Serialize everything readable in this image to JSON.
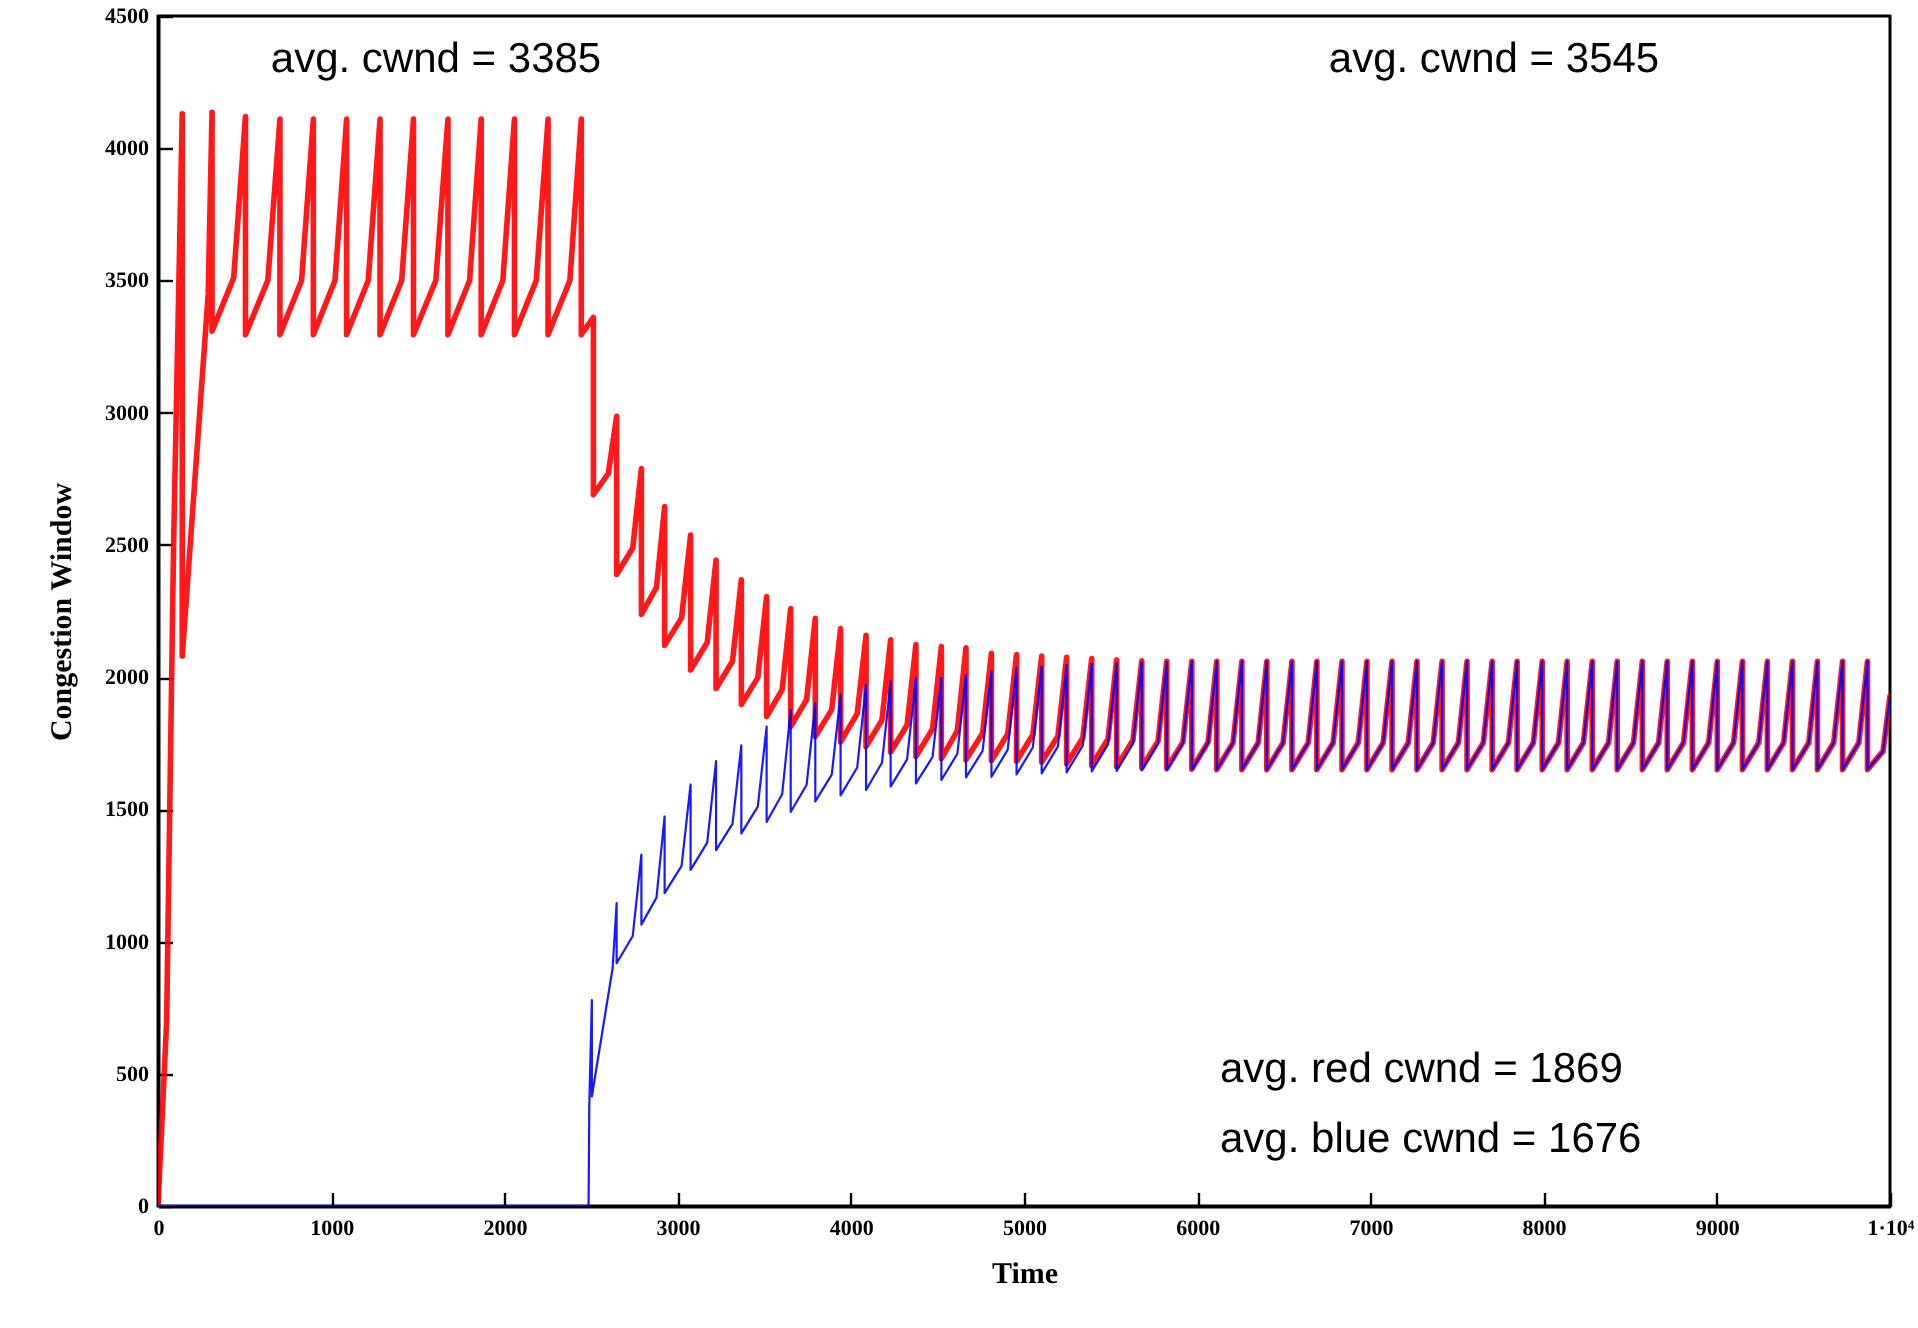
{
  "chart_data": {
    "type": "line",
    "xlabel": "Time",
    "ylabel": "Congestion Window",
    "xlim": [
      0,
      10000
    ],
    "ylim": [
      0,
      4500
    ],
    "xticks": [
      0,
      1000,
      2000,
      3000,
      4000,
      5000,
      6000,
      7000,
      8000,
      9000,
      {
        "value": 10000,
        "label": "1·10⁴"
      }
    ],
    "yticks": [
      0,
      500,
      1000,
      1500,
      2000,
      2500,
      3000,
      3500,
      4000,
      4500
    ],
    "line_style": "solid",
    "annotations": [
      "avg. cwnd = 3385",
      "avg. cwnd = 3545",
      "avg. red  cwnd =  1869",
      "avg. blue cwnd = 1676"
    ],
    "series": [
      {
        "color": "#ff0000",
        "x": [
          0,
          50,
          90,
          140,
          140,
          290,
          312,
          312,
          437,
          505,
          505,
          634,
          704,
          704,
          829,
          897,
          897,
          1022,
          1089,
          1089,
          1214,
          1282,
          1282,
          1407,
          1475,
          1475,
          1604,
          1674,
          1674,
          1799,
          1866,
          1866,
          1991,
          2058,
          2058,
          2184,
          2252,
          2252,
          2378,
          2444,
          2444,
          2514,
          2514,
          2600,
          2648,
          2648,
          2741,
          2791,
          2791,
          2878,
          2925,
          2925,
          3023,
          3075,
          3075,
          3171,
          3222,
          3222,
          3317,
          3368,
          3368,
          3463,
          3514,
          3514,
          3604,
          3653,
          3653,
          3745,
          3795,
          3795,
          3890,
          3941,
          3941,
          4037,
          4088,
          4088,
          4180,
          4230,
          4230,
          4325,
          4376,
          4376,
          4472,
          4523,
          4523,
          4615,
          4665,
          4665,
          4761,
          4812,
          4812,
          4906,
          4957,
          4957,
          5051,
          5102,
          5102,
          5196,
          5246,
          5246,
          5340,
          5391,
          5391,
          5485,
          5535,
          5535,
          5629,
          5680,
          5680,
          5774,
          5824,
          5824,
          5918,
          5969,
          5969,
          6063,
          6113,
          6113,
          6207,
          6258,
          6258,
          6352,
          6402,
          6402,
          6496,
          6547,
          6547,
          6641,
          6691,
          6691,
          6785,
          6836,
          6836,
          6930,
          6980,
          6980,
          7074,
          7125,
          7125,
          7219,
          7269,
          7269,
          7363,
          7414,
          7414,
          7508,
          7558,
          7558,
          7652,
          7703,
          7703,
          7797,
          7847,
          7847,
          7941,
          7992,
          7992,
          8086,
          8136,
          8136,
          8230,
          8281,
          8281,
          8375,
          8425,
          8425,
          8519,
          8570,
          8570,
          8664,
          8714,
          8714,
          8808,
          8859,
          8859,
          8953,
          9003,
          9003,
          9097,
          9148,
          9148,
          9242,
          9292,
          9292,
          9386,
          9437,
          9437,
          9531,
          9581,
          9581,
          9675,
          9726,
          9726,
          9820,
          9870,
          9870,
          9960,
          10000
        ],
        "values": [
          0,
          700,
          2500,
          4130,
          2080,
          3450,
          4136,
          3308,
          3510,
          4120,
          3295,
          3500,
          4110,
          3295,
          3500,
          4110,
          3295,
          3500,
          4110,
          3295,
          3500,
          4110,
          3295,
          3500,
          4110,
          3295,
          3500,
          4110,
          3295,
          3500,
          4110,
          3295,
          3500,
          4110,
          3295,
          3500,
          4110,
          3295,
          3500,
          4110,
          3295,
          3360,
          2690,
          2770,
          2986,
          2388,
          2488,
          2789,
          2237,
          2339,
          2645,
          2120,
          2224,
          2537,
          2027,
          2131,
          2443,
          1957,
          2060,
          2368,
          1896,
          1998,
          2305,
          1851,
          1953,
          2259,
          1813,
          1915,
          2222,
          1775,
          1877,
          2184,
          1755,
          1862,
          2158,
          1737,
          1838,
          2141,
          1717,
          1819,
          2123,
          1700,
          1804,
          2116,
          1692,
          1797,
          2111,
          1687,
          1788,
          2090,
          1685,
          1785,
          2085,
          1682,
          1782,
          2080,
          1678,
          1777,
          2075,
          1672,
          1771,
          2070,
          1666,
          1766,
          2065,
          1661,
          1761,
          2062,
          1657,
          1758,
          2060,
          1654,
          1755,
          2060,
          1652,
          1754,
          2060,
          1650,
          1752,
          2060,
          1650,
          1752,
          2060,
          1650,
          1752,
          2060,
          1650,
          1752,
          2060,
          1650,
          1752,
          2060,
          1650,
          1752,
          2060,
          1650,
          1752,
          2060,
          1650,
          1752,
          2060,
          1650,
          1752,
          2060,
          1650,
          1752,
          2060,
          1650,
          1752,
          2060,
          1650,
          1752,
          2060,
          1650,
          1752,
          2060,
          1650,
          1752,
          2060,
          1650,
          1752,
          2060,
          1650,
          1752,
          2060,
          1650,
          1752,
          2060,
          1650,
          1752,
          2060,
          1650,
          1752,
          2060,
          1650,
          1752,
          2060,
          1650,
          1752,
          2060,
          1650,
          1752,
          2060,
          1650,
          1752,
          2060,
          1650,
          1752,
          2060,
          1650,
          1752,
          2060,
          1650,
          1752,
          2060,
          1650,
          1720,
          1929
        ]
      },
      {
        "color": "#0000ff",
        "x": [
          0,
          2486,
          2490,
          2505,
          2505,
          2625,
          2648,
          2648,
          2741,
          2791,
          2791,
          2878,
          2925,
          2925,
          3023,
          3075,
          3075,
          3171,
          3222,
          3222,
          3317,
          3368,
          3368,
          3463,
          3514,
          3514,
          3604,
          3653,
          3653,
          3745,
          3795,
          3795,
          3890,
          3941,
          3941,
          4037,
          4088,
          4088,
          4180,
          4230,
          4230,
          4325,
          4376,
          4376,
          4472,
          4523,
          4523,
          4615,
          4665,
          4665,
          4761,
          4812,
          4812,
          4906,
          4957,
          4957,
          5051,
          5102,
          5102,
          5196,
          5246,
          5246,
          5340,
          5391,
          5391,
          5485,
          5535,
          5535,
          5629,
          5680,
          5680,
          5774,
          5824,
          5824,
          5918,
          5969,
          5969,
          6063,
          6113,
          6113,
          6207,
          6258,
          6258,
          6352,
          6402,
          6402,
          6496,
          6547,
          6547,
          6641,
          6691,
          6691,
          6785,
          6836,
          6836,
          6930,
          6980,
          6980,
          7074,
          7125,
          7125,
          7219,
          7269,
          7269,
          7363,
          7414,
          7414,
          7508,
          7558,
          7558,
          7652,
          7703,
          7703,
          7797,
          7847,
          7847,
          7941,
          7992,
          7992,
          8086,
          8136,
          8136,
          8230,
          8281,
          8281,
          8375,
          8425,
          8425,
          8519,
          8570,
          8570,
          8664,
          8714,
          8714,
          8808,
          8859,
          8859,
          8953,
          9003,
          9003,
          9097,
          9148,
          9148,
          9242,
          9292,
          9292,
          9386,
          9437,
          9437,
          9531,
          9581,
          9581,
          9675,
          9726,
          9726,
          9820,
          9870,
          9870,
          9960,
          10000
        ],
        "values": [
          0,
          0,
          376,
          779,
          414,
          900,
          1145,
          918,
          1021,
          1329,
          1064,
          1166,
          1473,
          1183,
          1286,
          1594,
          1271,
          1374,
          1682,
          1346,
          1445,
          1742,
          1409,
          1510,
          1813,
          1452,
          1558,
          1876,
          1490,
          1593,
          1901,
          1530,
          1631,
          1934,
          1553,
          1658,
          1972,
          1573,
          1676,
          1984,
          1586,
          1689,
          1997,
          1598,
          1698,
          1997,
          1611,
          1710,
          2007,
          1621,
          1721,
          2022,
          1623,
          1726,
          2035,
          1632,
          1734,
          2040,
          1636,
          1738,
          2045,
          1640,
          1742,
          2050,
          1643,
          1745,
          2053,
          1645,
          1748,
          2056,
          1647,
          1750,
          2058,
          1648,
          1751,
          2060,
          1649,
          1752,
          2060,
          1650,
          1752,
          2060,
          1650,
          1752,
          2060,
          1650,
          1752,
          2060,
          1650,
          1752,
          2060,
          1650,
          1752,
          2060,
          1650,
          1752,
          2060,
          1650,
          1752,
          2060,
          1650,
          1752,
          2060,
          1650,
          1752,
          2060,
          1650,
          1752,
          2060,
          1650,
          1752,
          2060,
          1650,
          1752,
          2060,
          1650,
          1752,
          2060,
          1650,
          1752,
          2060,
          1650,
          1752,
          2060,
          1650,
          1752,
          2060,
          1650,
          1752,
          2060,
          1650,
          1752,
          2060,
          1650,
          1752,
          2060,
          1650,
          1752,
          2060,
          1650,
          1752,
          2060,
          1650,
          1752,
          2060,
          1650,
          1752,
          2060,
          1650,
          1752,
          2060,
          1650,
          1752,
          2060,
          1650,
          1752,
          2060,
          1650,
          1720,
          1929
        ]
      }
    ]
  }
}
